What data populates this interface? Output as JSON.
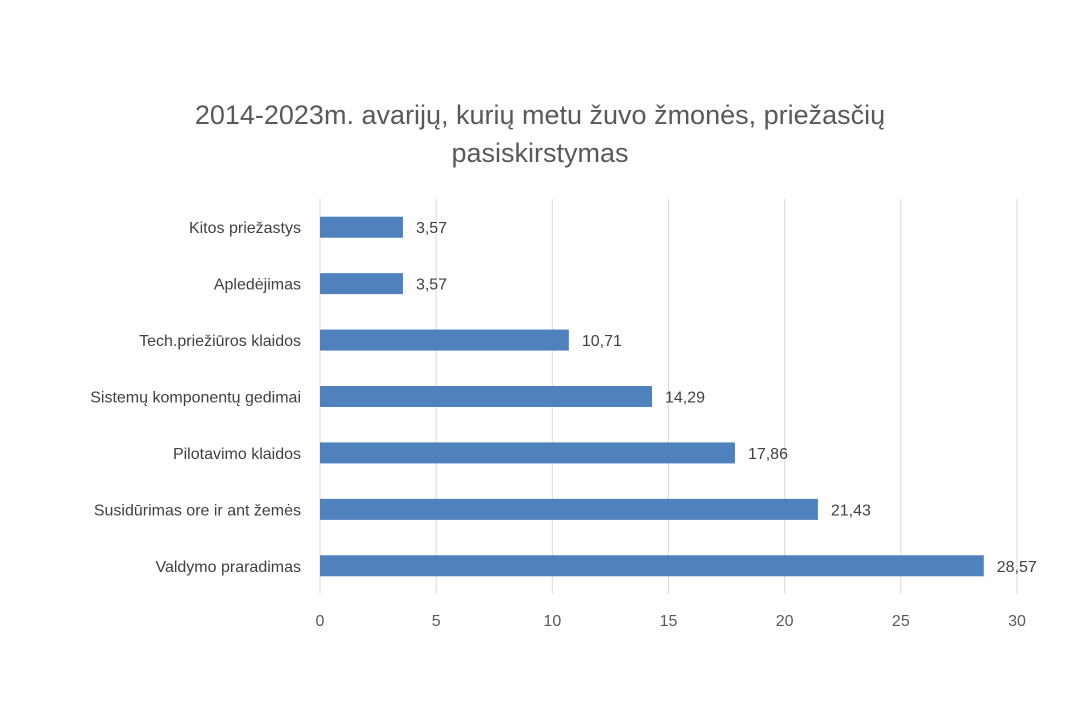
{
  "chart_data": {
    "type": "bar",
    "orientation": "horizontal",
    "title_lines": [
      "2014-2023m. avarijų, kurių metu žuvo žmonės, priežasčių",
      "pasiskirstymas"
    ],
    "categories": [
      "Kitos priežastys",
      "Apledėjimas",
      "Tech.priežiūros klaidos",
      "Sistemų komponentų gedimai",
      "Pilotavimo klaidos",
      "Susidūrimas ore ir ant žemės",
      "Valdymo praradimas"
    ],
    "values": [
      3.57,
      3.57,
      10.71,
      14.29,
      17.86,
      21.43,
      28.57
    ],
    "value_labels": [
      "3,57",
      "3,57",
      "10,71",
      "14,29",
      "17,86",
      "21,43",
      "28,57"
    ],
    "xlim": [
      0,
      30
    ],
    "xticks": [
      0,
      5,
      10,
      15,
      20,
      25,
      30
    ],
    "grid": true,
    "legend": "none",
    "bar_color": "#4f81bd"
  }
}
